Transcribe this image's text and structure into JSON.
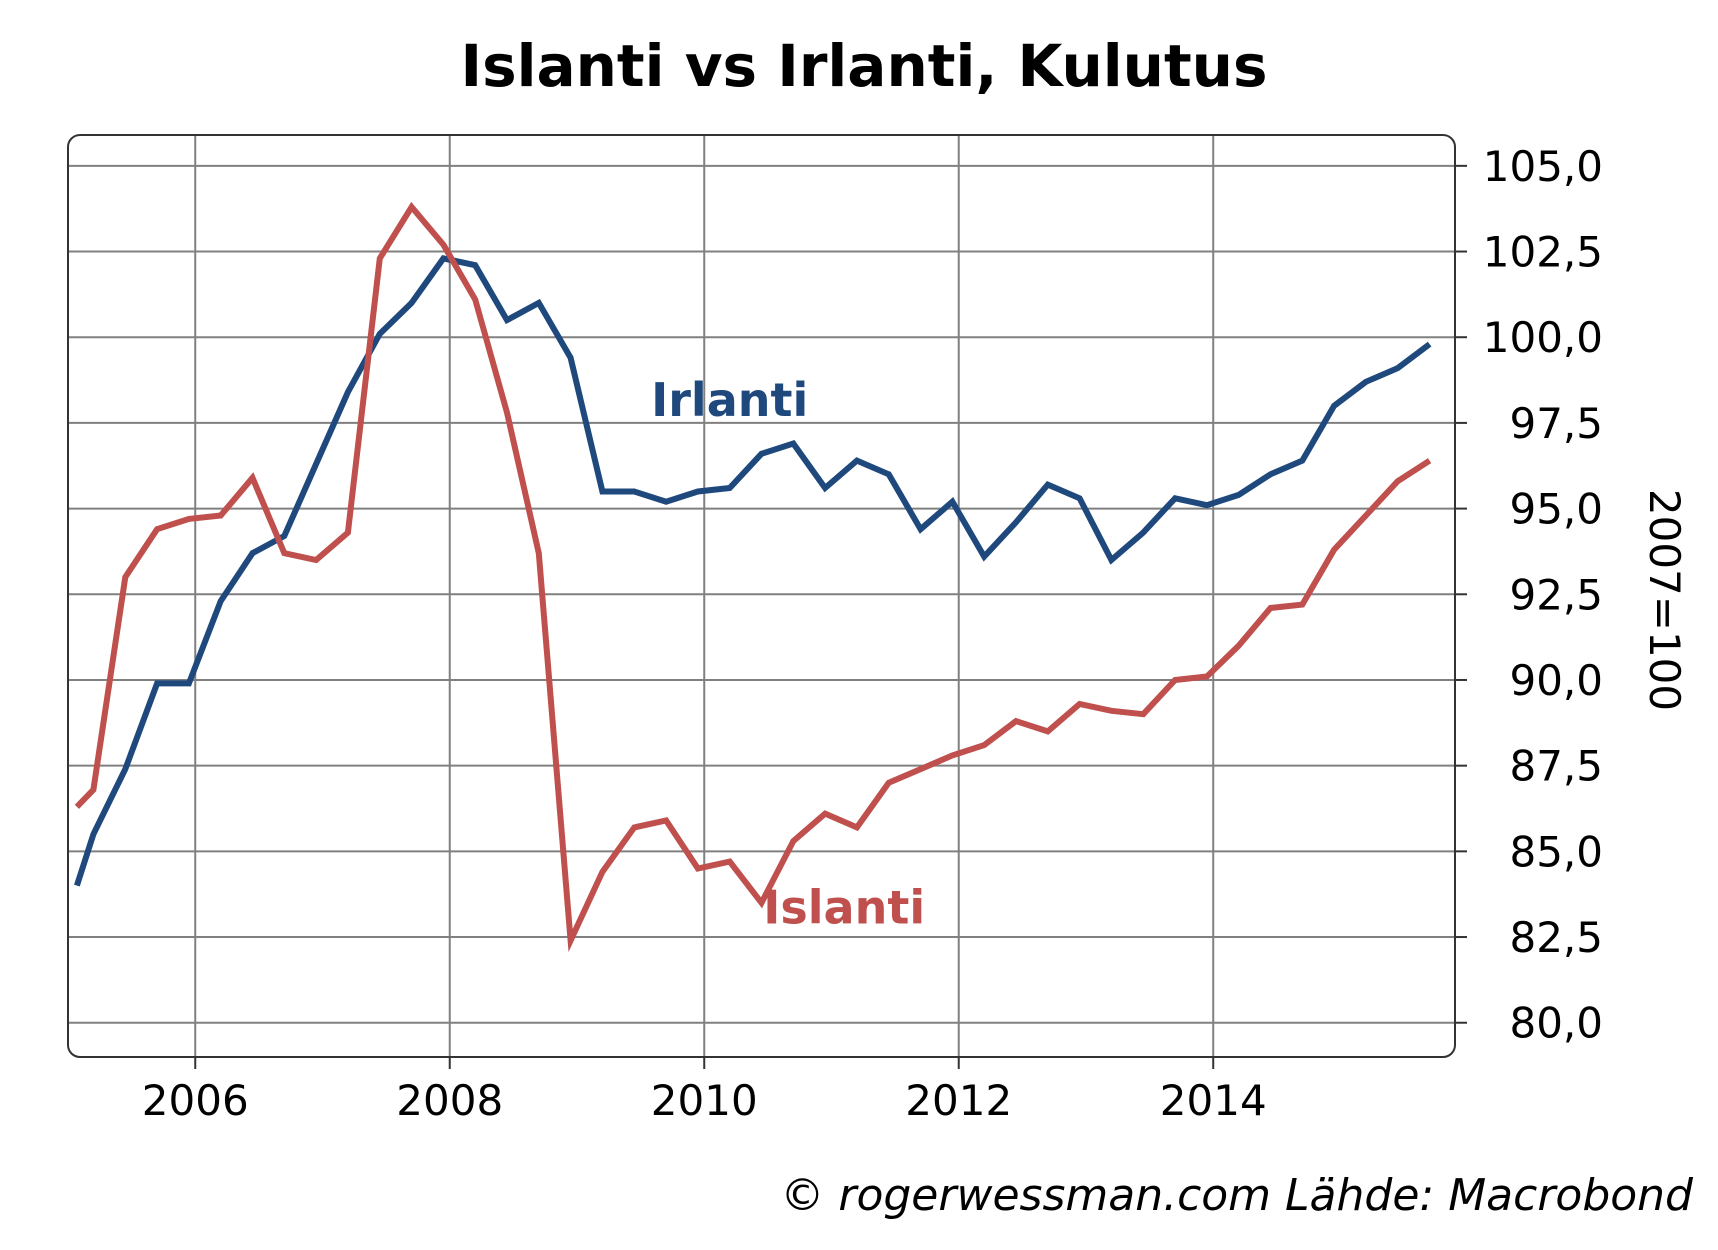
{
  "chart_data": {
    "type": "line",
    "title": "Islanti vs Irlanti, Kulutus",
    "ylabel": "2007=100",
    "source": "© rogerwessman.com Lähde: Macrobond",
    "xlim": [
      2005.0,
      2015.9
    ],
    "ylim": [
      79.0,
      105.9
    ],
    "x_ticks": [
      {
        "value": 2006,
        "label": "2006"
      },
      {
        "value": 2008,
        "label": "2008"
      },
      {
        "value": 2010,
        "label": "2010"
      },
      {
        "value": 2012,
        "label": "2012"
      },
      {
        "value": 2014,
        "label": "2014"
      }
    ],
    "y_ticks": [
      {
        "value": 80,
        "label": "80,0"
      },
      {
        "value": 82.5,
        "label": "82,5"
      },
      {
        "value": 85,
        "label": "85,0"
      },
      {
        "value": 87.5,
        "label": "87,5"
      },
      {
        "value": 90,
        "label": "90,0"
      },
      {
        "value": 92.5,
        "label": "92,5"
      },
      {
        "value": 95,
        "label": "95,0"
      },
      {
        "value": 97.5,
        "label": "97,5"
      },
      {
        "value": 100,
        "label": "100,0"
      },
      {
        "value": 102.5,
        "label": "102,5"
      },
      {
        "value": 105,
        "label": "105,0"
      }
    ],
    "grid": true,
    "y_axis_position": "right",
    "series": [
      {
        "name": "Irlanti",
        "color": "#1f497d",
        "label_pos": {
          "x": 2010.2,
          "y": 97.7
        },
        "points": [
          [
            2005.07,
            84.0
          ],
          [
            2005.2,
            85.5
          ],
          [
            2005.45,
            87.4
          ],
          [
            2005.7,
            89.9
          ],
          [
            2005.95,
            89.9
          ],
          [
            2006.2,
            92.3
          ],
          [
            2006.45,
            93.7
          ],
          [
            2006.7,
            94.2
          ],
          [
            2006.95,
            96.3
          ],
          [
            2007.2,
            98.4
          ],
          [
            2007.45,
            100.1
          ],
          [
            2007.7,
            101.0
          ],
          [
            2007.95,
            102.3
          ],
          [
            2008.2,
            102.1
          ],
          [
            2008.45,
            100.5
          ],
          [
            2008.7,
            101.0
          ],
          [
            2008.95,
            99.4
          ],
          [
            2009.2,
            95.5
          ],
          [
            2009.45,
            95.5
          ],
          [
            2009.7,
            95.2
          ],
          [
            2009.95,
            95.5
          ],
          [
            2010.2,
            95.6
          ],
          [
            2010.45,
            96.6
          ],
          [
            2010.7,
            96.9
          ],
          [
            2010.95,
            95.6
          ],
          [
            2011.2,
            96.4
          ],
          [
            2011.45,
            96.0
          ],
          [
            2011.7,
            94.4
          ],
          [
            2011.95,
            95.2
          ],
          [
            2012.2,
            93.6
          ],
          [
            2012.45,
            94.6
          ],
          [
            2012.7,
            95.7
          ],
          [
            2012.95,
            95.3
          ],
          [
            2013.2,
            93.5
          ],
          [
            2013.45,
            94.3
          ],
          [
            2013.7,
            95.3
          ],
          [
            2013.95,
            95.1
          ],
          [
            2014.2,
            95.4
          ],
          [
            2014.45,
            96.0
          ],
          [
            2014.7,
            96.4
          ],
          [
            2014.95,
            98.0
          ],
          [
            2015.2,
            98.7
          ],
          [
            2015.45,
            99.1
          ],
          [
            2015.7,
            99.8
          ]
        ]
      },
      {
        "name": "Islanti",
        "color": "#c0504d",
        "label_pos": {
          "x": 2011.1,
          "y": 82.9
        },
        "points": [
          [
            2005.07,
            86.3
          ],
          [
            2005.2,
            86.8
          ],
          [
            2005.45,
            93.0
          ],
          [
            2005.7,
            94.4
          ],
          [
            2005.95,
            94.7
          ],
          [
            2006.2,
            94.8
          ],
          [
            2006.45,
            95.9
          ],
          [
            2006.7,
            93.7
          ],
          [
            2006.95,
            93.5
          ],
          [
            2007.2,
            94.3
          ],
          [
            2007.45,
            102.3
          ],
          [
            2007.7,
            103.8
          ],
          [
            2007.95,
            102.7
          ],
          [
            2008.2,
            101.1
          ],
          [
            2008.45,
            97.8
          ],
          [
            2008.7,
            93.7
          ],
          [
            2008.95,
            82.4
          ],
          [
            2009.2,
            84.4
          ],
          [
            2009.45,
            85.7
          ],
          [
            2009.7,
            85.9
          ],
          [
            2009.95,
            84.5
          ],
          [
            2010.2,
            84.7
          ],
          [
            2010.45,
            83.5
          ],
          [
            2010.7,
            85.3
          ],
          [
            2010.95,
            86.1
          ],
          [
            2011.2,
            85.7
          ],
          [
            2011.45,
            87.0
          ],
          [
            2011.7,
            87.4
          ],
          [
            2011.95,
            87.8
          ],
          [
            2012.2,
            88.1
          ],
          [
            2012.45,
            88.8
          ],
          [
            2012.7,
            88.5
          ],
          [
            2012.95,
            89.3
          ],
          [
            2013.2,
            89.1
          ],
          [
            2013.45,
            89.0
          ],
          [
            2013.7,
            90.0
          ],
          [
            2013.95,
            90.1
          ],
          [
            2014.2,
            91.0
          ],
          [
            2014.45,
            92.1
          ],
          [
            2014.7,
            92.2
          ],
          [
            2014.95,
            93.8
          ],
          [
            2015.2,
            94.8
          ],
          [
            2015.45,
            95.8
          ],
          [
            2015.7,
            96.4
          ]
        ]
      }
    ]
  }
}
